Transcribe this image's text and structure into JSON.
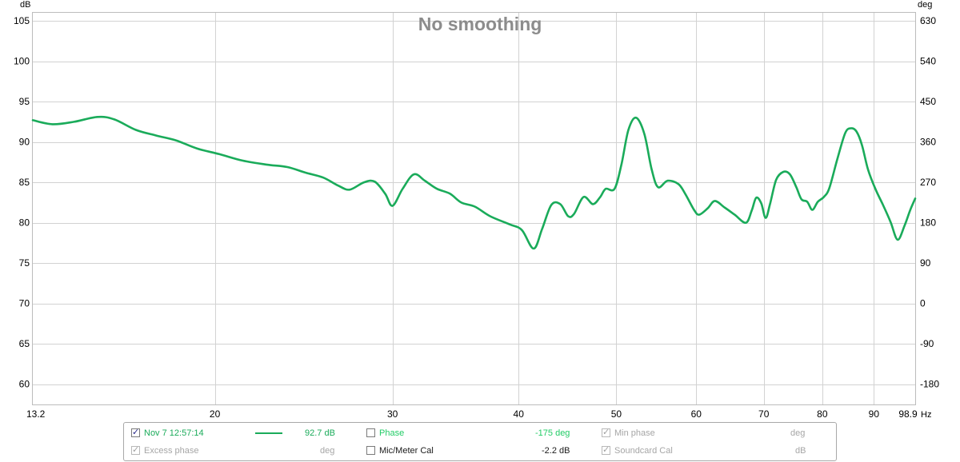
{
  "chart_data": {
    "type": "line",
    "title": "No smoothing",
    "y_left_unit": "dB",
    "y_right_unit": "deg",
    "x_unit": "Hz",
    "x_scale": "log",
    "x_range": [
      13.2,
      98.9
    ],
    "y_left_range": [
      57.5,
      106
    ],
    "y_right_range": [
      -225,
      648
    ],
    "x_ticks": [
      {
        "v": 13.2,
        "label": "13.2"
      },
      {
        "v": 20,
        "label": "20"
      },
      {
        "v": 30,
        "label": "30"
      },
      {
        "v": 40,
        "label": "40"
      },
      {
        "v": 50,
        "label": "50"
      },
      {
        "v": 60,
        "label": "60"
      },
      {
        "v": 70,
        "label": "70"
      },
      {
        "v": 80,
        "label": "80"
      },
      {
        "v": 90,
        "label": "90"
      },
      {
        "v": 98.9,
        "label": "98.9"
      }
    ],
    "y_left_ticks": [
      105,
      100,
      95,
      90,
      85,
      80,
      75,
      70,
      65,
      60
    ],
    "y_right_ticks": [
      630,
      540,
      450,
      360,
      270,
      180,
      90,
      0,
      -90,
      -180
    ],
    "grid": true,
    "series": [
      {
        "name": "Nov 7 12:57:14",
        "color": "#1aab5a",
        "points": [
          [
            13.2,
            92.7
          ],
          [
            13.8,
            92.2
          ],
          [
            14.5,
            92.5
          ],
          [
            15.3,
            93.1
          ],
          [
            15.9,
            92.8
          ],
          [
            16.7,
            91.5
          ],
          [
            17.5,
            90.8
          ],
          [
            18.3,
            90.2
          ],
          [
            19.2,
            89.2
          ],
          [
            20.2,
            88.5
          ],
          [
            21.3,
            87.7
          ],
          [
            22.5,
            87.2
          ],
          [
            23.6,
            86.9
          ],
          [
            24.6,
            86.2
          ],
          [
            25.6,
            85.6
          ],
          [
            26.5,
            84.6
          ],
          [
            27.2,
            84.1
          ],
          [
            28.1,
            85.0
          ],
          [
            28.8,
            85.1
          ],
          [
            29.5,
            83.6
          ],
          [
            30.0,
            82.1
          ],
          [
            30.7,
            84.2
          ],
          [
            31.5,
            86.0
          ],
          [
            32.3,
            85.2
          ],
          [
            33.2,
            84.2
          ],
          [
            34.2,
            83.6
          ],
          [
            35.1,
            82.5
          ],
          [
            36.2,
            82.0
          ],
          [
            37.5,
            80.8
          ],
          [
            39.2,
            79.8
          ],
          [
            40.3,
            79.1
          ],
          [
            41.4,
            76.8
          ],
          [
            42.2,
            79.2
          ],
          [
            43.1,
            82.2
          ],
          [
            44.0,
            82.3
          ],
          [
            44.8,
            80.8
          ],
          [
            45.4,
            81.1
          ],
          [
            46.4,
            83.2
          ],
          [
            47.4,
            82.3
          ],
          [
            48.2,
            83.2
          ],
          [
            48.8,
            84.2
          ],
          [
            49.8,
            84.2
          ],
          [
            50.6,
            87.3
          ],
          [
            51.4,
            91.5
          ],
          [
            52.3,
            93.0
          ],
          [
            53.3,
            91.0
          ],
          [
            54.2,
            86.6
          ],
          [
            55.0,
            84.4
          ],
          [
            56.2,
            85.2
          ],
          [
            57.6,
            84.8
          ],
          [
            58.5,
            83.6
          ],
          [
            59.7,
            81.6
          ],
          [
            60.4,
            81.0
          ],
          [
            61.6,
            81.8
          ],
          [
            62.6,
            82.7
          ],
          [
            64.0,
            81.9
          ],
          [
            65.5,
            81.0
          ],
          [
            67.2,
            80.0
          ],
          [
            68.1,
            81.5
          ],
          [
            68.8,
            83.1
          ],
          [
            69.6,
            82.4
          ],
          [
            70.3,
            80.6
          ],
          [
            71.0,
            82.3
          ],
          [
            72.0,
            85.3
          ],
          [
            73.2,
            86.3
          ],
          [
            74.3,
            86.0
          ],
          [
            75.4,
            84.4
          ],
          [
            76.3,
            82.9
          ],
          [
            77.3,
            82.6
          ],
          [
            78.2,
            81.6
          ],
          [
            79.2,
            82.6
          ],
          [
            80.3,
            83.2
          ],
          [
            81.3,
            84.3
          ],
          [
            82.8,
            87.9
          ],
          [
            84.3,
            91.1
          ],
          [
            85.4,
            91.7
          ],
          [
            86.5,
            91.3
          ],
          [
            87.6,
            89.6
          ],
          [
            88.8,
            86.6
          ],
          [
            90.3,
            84.2
          ],
          [
            91.9,
            82.2
          ],
          [
            93.5,
            80.1
          ],
          [
            95.0,
            77.9
          ],
          [
            96.5,
            79.6
          ],
          [
            97.8,
            81.6
          ],
          [
            98.9,
            83.0
          ]
        ]
      }
    ]
  },
  "legend": {
    "row1": [
      {
        "id": "trace",
        "label": "Nov 7 12:57:14",
        "checked": true,
        "enabled": true,
        "color": "#1aab5a",
        "value": "92.7 dB",
        "value_color": "#1aab5a"
      },
      {
        "id": "phase",
        "label": "Phase",
        "checked": false,
        "enabled": true,
        "color": "#1aab5a",
        "value": "-175 deg",
        "value_color": "#22cc66"
      },
      {
        "id": "minphase",
        "label": "Min phase",
        "checked": true,
        "enabled": false,
        "color": "#a6a6a6",
        "value": "deg",
        "value_color": "#a6a6a6"
      }
    ],
    "row2": [
      {
        "id": "excess",
        "label": "Excess phase",
        "checked": true,
        "enabled": false,
        "color": "#a6a6a6",
        "value": "deg",
        "value_color": "#a6a6a6"
      },
      {
        "id": "mic",
        "label": "Mic/Meter Cal",
        "checked": false,
        "enabled": true,
        "color": "#1a1a1a",
        "value": "-2.2 dB",
        "value_color": "#1a1a1a"
      },
      {
        "id": "soundcard",
        "label": "Soundcard Cal",
        "checked": true,
        "enabled": false,
        "color": "#a6a6a6",
        "value": "dB",
        "value_color": "#a6a6a6"
      }
    ]
  }
}
